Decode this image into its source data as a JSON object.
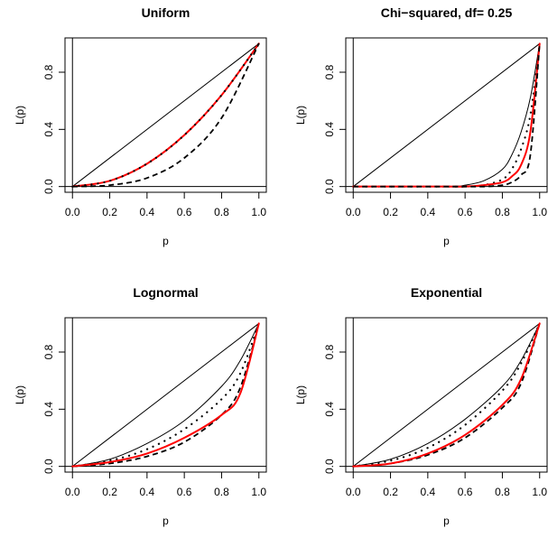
{
  "chart_data": [
    {
      "type": "line",
      "title": "Uniform",
      "xlabel": "p",
      "ylabel": "L(p)",
      "xlim": [
        0,
        1
      ],
      "ylim": [
        0,
        1
      ],
      "xticks": [
        "0.0",
        "0.2",
        "0.4",
        "0.6",
        "0.8",
        "1.0"
      ],
      "yticks": [
        "0.0",
        "0.4",
        "0.8"
      ],
      "x": [
        0,
        0.2,
        0.4,
        0.6,
        0.8,
        1.0
      ],
      "series": [
        {
          "style": "solid-thin",
          "color": "#000000",
          "values": [
            0,
            0.2,
            0.4,
            0.6,
            0.8,
            1.0
          ]
        },
        {
          "style": "solid-red",
          "color": "#ff0000",
          "values": [
            0,
            0.04,
            0.16,
            0.36,
            0.64,
            1.0
          ]
        },
        {
          "style": "dotted",
          "color": "#000000",
          "values": [
            0,
            0.04,
            0.16,
            0.36,
            0.64,
            1.0
          ]
        },
        {
          "style": "dashed",
          "color": "#000000",
          "values": [
            0,
            0.01,
            0.06,
            0.2,
            0.48,
            1.0
          ]
        }
      ]
    },
    {
      "type": "line",
      "title": "Chi−squared, df= 0.25",
      "xlabel": "p",
      "ylabel": "L(p)",
      "xlim": [
        0,
        1
      ],
      "ylim": [
        0,
        1
      ],
      "xticks": [
        "0.0",
        "0.2",
        "0.4",
        "0.6",
        "0.8",
        "1.0"
      ],
      "yticks": [
        "0.0",
        "0.4",
        "0.8"
      ],
      "x": [
        0,
        0.5,
        0.6,
        0.7,
        0.8,
        0.85,
        0.9,
        0.95,
        1.0
      ],
      "series": [
        {
          "style": "solid-thin",
          "color": "#000000",
          "values": [
            0,
            0.5,
            0.6,
            0.7,
            0.8,
            0.85,
            0.9,
            0.95,
            1.0
          ]
        },
        {
          "style": "solid-thin-2",
          "color": "#000000",
          "values": [
            0,
            0.0,
            0.01,
            0.04,
            0.12,
            0.22,
            0.38,
            0.62,
            1.0
          ]
        },
        {
          "style": "dotted",
          "color": "#000000",
          "values": [
            0,
            0.0,
            0.0,
            0.01,
            0.05,
            0.12,
            0.26,
            0.5,
            1.0
          ]
        },
        {
          "style": "solid-red",
          "color": "#ff0000",
          "values": [
            0,
            0.0,
            0.0,
            0.01,
            0.03,
            0.07,
            0.15,
            0.38,
            1.0
          ]
        },
        {
          "style": "dashed",
          "color": "#000000",
          "values": [
            0,
            0.0,
            0.0,
            0.0,
            0.01,
            0.03,
            0.08,
            0.22,
            1.0
          ]
        }
      ]
    },
    {
      "type": "line",
      "title": "Lognormal",
      "xlabel": "p",
      "ylabel": "L(p)",
      "xlim": [
        0,
        1
      ],
      "ylim": [
        0,
        1
      ],
      "xticks": [
        "0.0",
        "0.2",
        "0.4",
        "0.6",
        "0.8",
        "1.0"
      ],
      "yticks": [
        "0.0",
        "0.4",
        "0.8"
      ],
      "x": [
        0,
        0.2,
        0.4,
        0.6,
        0.8,
        0.9,
        1.0
      ],
      "series": [
        {
          "style": "solid-thin",
          "color": "#000000",
          "values": [
            0,
            0.2,
            0.4,
            0.6,
            0.8,
            0.9,
            1.0
          ]
        },
        {
          "style": "solid-thin-2",
          "color": "#000000",
          "values": [
            0,
            0.05,
            0.16,
            0.32,
            0.56,
            0.74,
            1.0
          ]
        },
        {
          "style": "dotted",
          "color": "#000000",
          "values": [
            0,
            0.04,
            0.12,
            0.26,
            0.47,
            0.65,
            1.0
          ]
        },
        {
          "style": "dashed",
          "color": "#000000",
          "values": [
            0,
            0.02,
            0.07,
            0.17,
            0.36,
            0.55,
            1.0
          ]
        },
        {
          "style": "solid-red",
          "color": "#ff0000",
          "values": [
            0,
            0.03,
            0.09,
            0.2,
            0.36,
            0.51,
            1.0
          ]
        }
      ]
    },
    {
      "type": "line",
      "title": "Exponential",
      "xlabel": "p",
      "ylabel": "L(p)",
      "xlim": [
        0,
        1
      ],
      "ylim": [
        0,
        1
      ],
      "xticks": [
        "0.0",
        "0.2",
        "0.4",
        "0.6",
        "0.8",
        "1.0"
      ],
      "yticks": [
        "0.0",
        "0.4",
        "0.8"
      ],
      "x": [
        0,
        0.2,
        0.4,
        0.6,
        0.8,
        0.9,
        1.0
      ],
      "series": [
        {
          "style": "solid-thin",
          "color": "#000000",
          "values": [
            0,
            0.2,
            0.4,
            0.6,
            0.8,
            0.9,
            1.0
          ]
        },
        {
          "style": "solid-thin-2",
          "color": "#000000",
          "values": [
            0,
            0.05,
            0.16,
            0.33,
            0.56,
            0.74,
            1.0
          ]
        },
        {
          "style": "dotted",
          "color": "#000000",
          "values": [
            0,
            0.04,
            0.13,
            0.29,
            0.53,
            0.72,
            1.0
          ]
        },
        {
          "style": "dashed",
          "color": "#000000",
          "values": [
            0,
            0.02,
            0.08,
            0.2,
            0.41,
            0.58,
            1.0
          ]
        },
        {
          "style": "solid-red",
          "color": "#ff0000",
          "values": [
            0,
            0.02,
            0.09,
            0.22,
            0.43,
            0.61,
            1.0
          ]
        }
      ]
    }
  ]
}
